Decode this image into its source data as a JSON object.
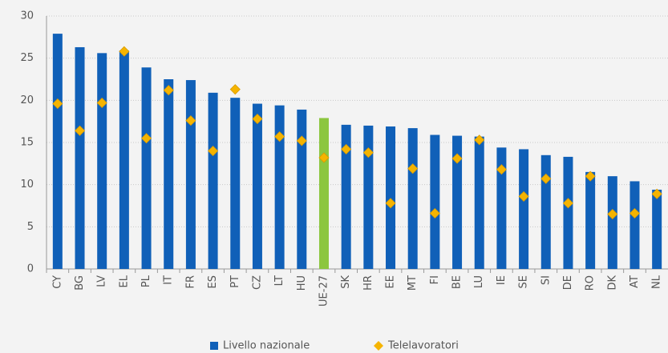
{
  "chart_data": {
    "type": "bar",
    "categories": [
      "CY",
      "BG",
      "LV",
      "EL",
      "PL",
      "IT",
      "FR",
      "ES",
      "PT",
      "CZ",
      "LT",
      "HU",
      "UE-27",
      "SK",
      "HR",
      "EE",
      "MT",
      "FI",
      "BE",
      "LU",
      "IE",
      "SE",
      "SI",
      "DE",
      "RO",
      "DK",
      "AT",
      "NL"
    ],
    "series": [
      {
        "name": "Livello nazionale",
        "color": "#1060b8",
        "colors": [
          "#1060b8",
          "#1060b8",
          "#1060b8",
          "#1060b8",
          "#1060b8",
          "#1060b8",
          "#1060b8",
          "#1060b8",
          "#1060b8",
          "#1060b8",
          "#1060b8",
          "#1060b8",
          "#8cc63f",
          "#1060b8",
          "#1060b8",
          "#1060b8",
          "#1060b8",
          "#1060b8",
          "#1060b8",
          "#1060b8",
          "#1060b8",
          "#1060b8",
          "#1060b8",
          "#1060b8",
          "#1060b8",
          "#1060b8",
          "#1060b8",
          "#1060b8"
        ],
        "values": [
          27.9,
          26.3,
          25.6,
          25.9,
          23.9,
          22.5,
          22.4,
          20.9,
          20.3,
          19.6,
          19.4,
          18.9,
          17.9,
          17.1,
          17.0,
          16.9,
          16.7,
          15.9,
          15.8,
          15.7,
          14.4,
          14.2,
          13.5,
          13.3,
          11.5,
          11.0,
          10.4,
          9.4
        ]
      },
      {
        "name": "Telelavoratori",
        "color": "#f5b400",
        "marker": "diamond",
        "values": [
          19.6,
          16.4,
          19.7,
          25.8,
          15.5,
          21.2,
          17.6,
          14.0,
          21.3,
          17.8,
          15.7,
          15.2,
          13.2,
          14.2,
          13.8,
          7.8,
          11.9,
          6.6,
          13.1,
          15.3,
          11.8,
          8.6,
          10.7,
          7.8,
          11.0,
          6.5,
          6.6,
          8.9
        ]
      }
    ],
    "ylim": [
      0,
      30
    ],
    "yticks": [
      0,
      5,
      10,
      15,
      20,
      25,
      30
    ],
    "grid": true,
    "legend": "bottom"
  }
}
